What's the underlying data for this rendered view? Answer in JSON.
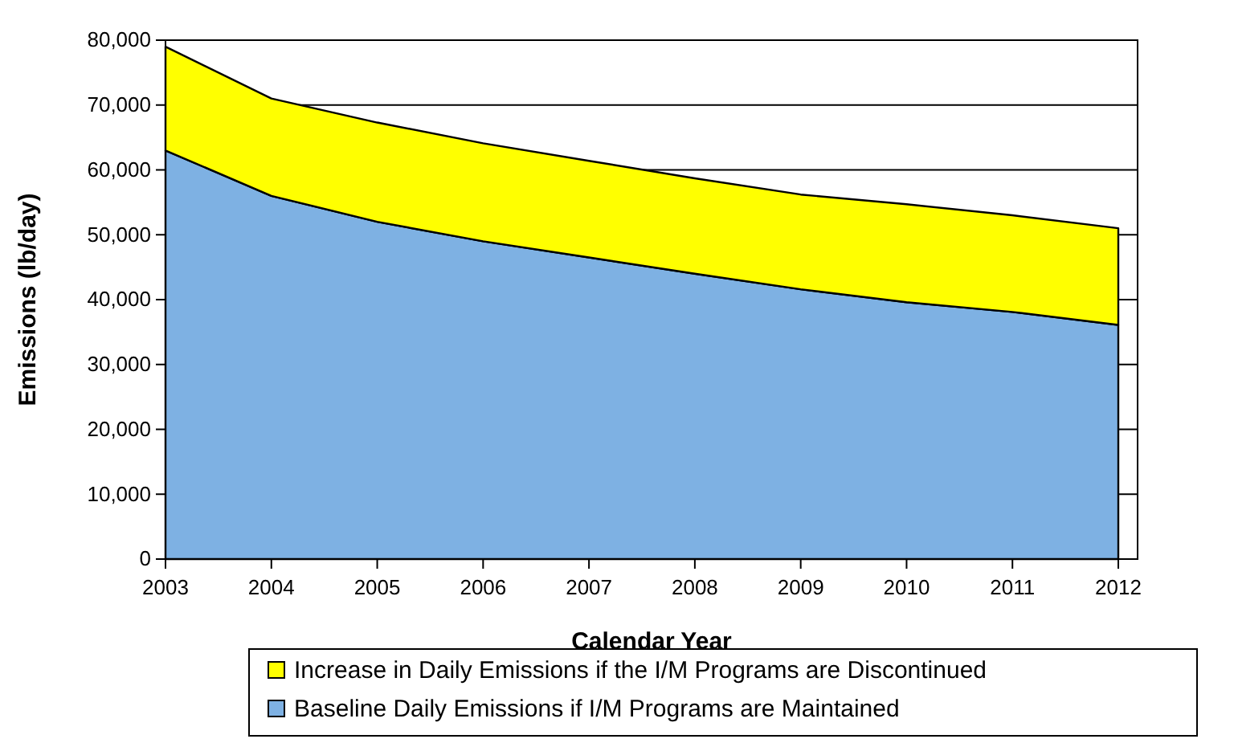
{
  "chart_data": {
    "type": "area",
    "stacked": true,
    "xlabel": "Calendar Year",
    "ylabel": "Emissions (lb/day)",
    "categories": [
      "2003",
      "2004",
      "2005",
      "2006",
      "2007",
      "2008",
      "2009",
      "2010",
      "2011",
      "2012"
    ],
    "series": [
      {
        "name": "Baseline Daily Emissions if I/M Programs are Maintained",
        "color": "#7eb1e3",
        "values": [
          63000,
          56000,
          52000,
          49000,
          46500,
          44000,
          41600,
          39600,
          38100,
          36100
        ]
      },
      {
        "name": "Increase in Daily Emissions if the I/M Programs are Discontinued",
        "color": "#ffff00",
        "values": [
          16000,
          15000,
          15300,
          15100,
          14900,
          14700,
          14600,
          15100,
          14900,
          14900
        ]
      }
    ],
    "ylim": [
      0,
      80000
    ],
    "yticks": [
      {
        "value": 0,
        "label": "0"
      },
      {
        "value": 10000,
        "label": "10,000"
      },
      {
        "value": 20000,
        "label": "20,000"
      },
      {
        "value": 30000,
        "label": "30,000"
      },
      {
        "value": 40000,
        "label": "40,000"
      },
      {
        "value": 50000,
        "label": "50,000"
      },
      {
        "value": 60000,
        "label": "60,000"
      },
      {
        "value": 70000,
        "label": "70,000"
      },
      {
        "value": 80000,
        "label": "80,000"
      }
    ],
    "grid": "y",
    "legend": "bottom"
  }
}
